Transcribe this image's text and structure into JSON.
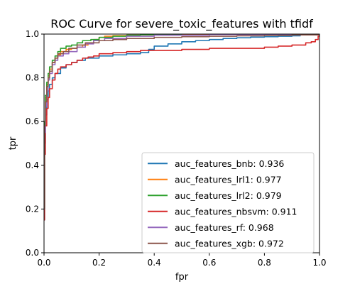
{
  "chart_data": {
    "type": "line",
    "title": "ROC Curve for severe_toxic_features with tfidf",
    "xlabel": "fpr",
    "ylabel": "tpr",
    "xlim": [
      0,
      1
    ],
    "ylim": [
      0,
      1
    ],
    "xticks": [
      "0.0",
      "0.2",
      "0.4",
      "0.6",
      "0.8",
      "1.0"
    ],
    "yticks": [
      "0.0",
      "0.2",
      "0.4",
      "0.6",
      "0.8",
      "1.0"
    ],
    "grid": false,
    "legend_position": "lower-right",
    "series": [
      {
        "name": "auc_features_bnb: 0.936",
        "color": "#1f77b4",
        "x": [
          0,
          0.002,
          0.005,
          0.01,
          0.015,
          0.02,
          0.03,
          0.04,
          0.06,
          0.08,
          0.1,
          0.12,
          0.15,
          0.2,
          0.25,
          0.3,
          0.35,
          0.38,
          0.4,
          0.45,
          0.5,
          0.55,
          0.6,
          0.65,
          0.7,
          0.75,
          0.8,
          0.85,
          0.9,
          0.93
        ],
        "y": [
          0.15,
          0.5,
          0.63,
          0.7,
          0.74,
          0.77,
          0.8,
          0.82,
          0.845,
          0.86,
          0.87,
          0.88,
          0.89,
          0.9,
          0.905,
          0.91,
          0.915,
          0.93,
          0.945,
          0.955,
          0.965,
          0.97,
          0.975,
          0.98,
          0.983,
          0.986,
          0.988,
          0.99,
          0.992,
          0.995
        ]
      },
      {
        "name": "auc_features_lrl1: 0.977",
        "color": "#ff7f0e",
        "x": [
          0,
          0.002,
          0.005,
          0.01,
          0.015,
          0.02,
          0.03,
          0.04,
          0.05,
          0.06,
          0.08,
          0.1,
          0.12,
          0.14,
          0.16,
          0.18,
          0.2,
          0.22,
          0.25,
          0.3,
          0.35,
          0.4,
          0.5,
          0.6
        ],
        "y": [
          0.2,
          0.6,
          0.71,
          0.77,
          0.81,
          0.84,
          0.87,
          0.89,
          0.905,
          0.92,
          0.93,
          0.935,
          0.94,
          0.95,
          0.96,
          0.975,
          0.985,
          0.99,
          0.993,
          0.995,
          0.997,
          0.998,
          0.999,
          1.0
        ]
      },
      {
        "name": "auc_features_lrl2: 0.979",
        "color": "#2ca02c",
        "x": [
          0,
          0.002,
          0.005,
          0.01,
          0.015,
          0.02,
          0.03,
          0.04,
          0.05,
          0.06,
          0.08,
          0.1,
          0.12,
          0.14,
          0.17,
          0.2,
          0.25,
          0.3,
          0.35,
          0.4,
          0.5
        ],
        "y": [
          0.2,
          0.6,
          0.72,
          0.78,
          0.82,
          0.85,
          0.88,
          0.9,
          0.92,
          0.935,
          0.945,
          0.95,
          0.96,
          0.97,
          0.975,
          0.985,
          0.99,
          0.995,
          0.997,
          0.999,
          1.0
        ]
      },
      {
        "name": "auc_features_nbsvm: 0.911",
        "color": "#d62728",
        "x": [
          0,
          0.002,
          0.005,
          0.01,
          0.015,
          0.02,
          0.03,
          0.04,
          0.05,
          0.06,
          0.08,
          0.1,
          0.12,
          0.14,
          0.16,
          0.18,
          0.2,
          0.25,
          0.3,
          0.35,
          0.4,
          0.5,
          0.6,
          0.7,
          0.8,
          0.85,
          0.9,
          0.95,
          0.97,
          0.985,
          0.995,
          1.0
        ],
        "y": [
          0.15,
          0.45,
          0.58,
          0.66,
          0.71,
          0.75,
          0.79,
          0.82,
          0.84,
          0.85,
          0.86,
          0.87,
          0.88,
          0.89,
          0.895,
          0.9,
          0.91,
          0.915,
          0.92,
          0.925,
          0.925,
          0.93,
          0.935,
          0.935,
          0.94,
          0.945,
          0.95,
          0.96,
          0.965,
          0.975,
          0.99,
          1.0
        ]
      },
      {
        "name": "auc_features_rf: 0.968",
        "color": "#9467bd",
        "x": [
          0,
          0.002,
          0.005,
          0.01,
          0.015,
          0.02,
          0.03,
          0.04,
          0.05,
          0.07,
          0.09,
          0.12,
          0.15,
          0.18,
          0.22,
          0.3,
          0.4,
          0.6,
          0.8,
          1.0
        ],
        "y": [
          0.2,
          0.55,
          0.67,
          0.74,
          0.79,
          0.82,
          0.86,
          0.88,
          0.9,
          0.91,
          0.92,
          0.94,
          0.955,
          0.97,
          0.98,
          0.99,
          0.995,
          0.998,
          0.999,
          1.0
        ]
      },
      {
        "name": "auc_features_xgb: 0.972",
        "color": "#8c564b",
        "x": [
          0,
          0.002,
          0.005,
          0.01,
          0.015,
          0.02,
          0.03,
          0.04,
          0.05,
          0.07,
          0.09,
          0.12,
          0.15,
          0.2,
          0.25,
          0.3,
          0.4,
          0.5,
          0.6,
          0.7,
          0.8,
          0.9,
          1.0
        ],
        "y": [
          0.2,
          0.58,
          0.69,
          0.76,
          0.8,
          0.83,
          0.87,
          0.89,
          0.91,
          0.92,
          0.935,
          0.95,
          0.96,
          0.97,
          0.975,
          0.98,
          0.985,
          0.988,
          0.99,
          0.992,
          0.994,
          0.996,
          1.0
        ]
      }
    ]
  }
}
